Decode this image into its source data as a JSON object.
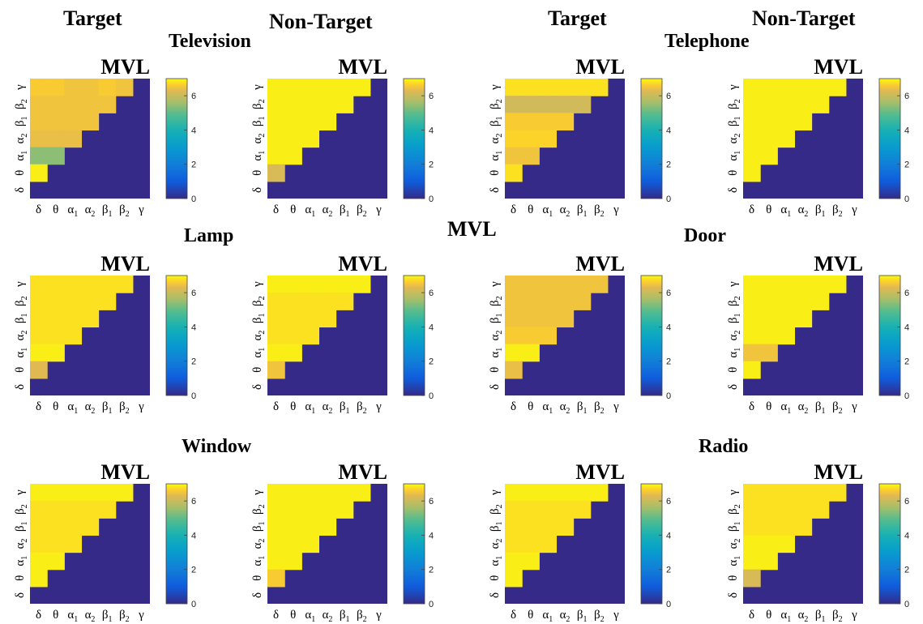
{
  "headers": [
    "Target",
    "Non-Target",
    "Target",
    "Non-Target"
  ],
  "center_label": "MVL",
  "colormap": "parula",
  "colors": {
    "upper_fill": "#352a87",
    "high": "#f9fb0e",
    "mid_orange": "#f6bc38"
  },
  "chart_data": [
    {
      "type": "heatmap",
      "group": "Television",
      "condition": "Target",
      "title": "MVL",
      "x_labels": [
        "δ",
        "θ",
        "α1",
        "α2",
        "β1",
        "β2",
        "γ"
      ],
      "y_labels": [
        "δ",
        "θ",
        "α1",
        "α2",
        "β1",
        "β2",
        "γ"
      ],
      "colorbar": {
        "ticks": [
          "0",
          "2",
          "4",
          "6"
        ],
        "clim": [
          0,
          7
        ]
      },
      "values": [
        [
          6.6,
          6.6,
          6.5,
          6.5,
          6.6,
          6.5
        ],
        [
          6.5,
          6.5,
          6.5,
          6.5,
          6.5
        ],
        [
          6.5,
          6.5,
          6.5,
          6.5
        ],
        [
          6.4,
          6.4,
          6.4
        ],
        [
          5.4,
          5.4
        ],
        [
          6.9
        ]
      ]
    },
    {
      "type": "heatmap",
      "group": "Television",
      "condition": "Non-Target",
      "title": "MVL",
      "x_labels": [
        "δ",
        "θ",
        "α1",
        "α2",
        "β1",
        "β2",
        "γ"
      ],
      "y_labels": [
        "δ",
        "θ",
        "α1",
        "α2",
        "β1",
        "β2",
        "γ"
      ],
      "colorbar": {
        "ticks": [
          "0",
          "2",
          "4",
          "6"
        ],
        "clim": [
          0,
          7
        ]
      },
      "values": [
        [
          6.9,
          6.9,
          6.9,
          6.9,
          6.9,
          6.9
        ],
        [
          6.9,
          6.9,
          6.9,
          6.9,
          6.9
        ],
        [
          6.9,
          6.9,
          6.9,
          6.9
        ],
        [
          6.9,
          6.9,
          6.9
        ],
        [
          6.9,
          6.9
        ],
        [
          6.2
        ]
      ]
    },
    {
      "type": "heatmap",
      "group": "Telephone",
      "condition": "Target",
      "title": "MVL",
      "x_labels": [
        "δ",
        "θ",
        "α1",
        "α2",
        "β1",
        "β2",
        "γ"
      ],
      "y_labels": [
        "δ",
        "θ",
        "α1",
        "α2",
        "β1",
        "β2",
        "γ"
      ],
      "colorbar": {
        "ticks": [
          "0",
          "2",
          "4",
          "6"
        ],
        "clim": [
          0,
          7
        ]
      },
      "values": [
        [
          6.8,
          6.8,
          6.8,
          6.8,
          6.8,
          6.8
        ],
        [
          6.1,
          6.1,
          6.1,
          6.1,
          6.1
        ],
        [
          6.6,
          6.6,
          6.6,
          6.6
        ],
        [
          6.7,
          6.7,
          6.7
        ],
        [
          6.5,
          6.5
        ],
        [
          6.8
        ]
      ]
    },
    {
      "type": "heatmap",
      "group": "Telephone",
      "condition": "Non-Target",
      "title": "MVL",
      "x_labels": [
        "δ",
        "θ",
        "α1",
        "α2",
        "β1",
        "β2",
        "γ"
      ],
      "y_labels": [
        "δ",
        "θ",
        "α1",
        "α2",
        "β1",
        "β2",
        "γ"
      ],
      "colorbar": {
        "ticks": [
          "0",
          "2",
          "4",
          "6"
        ],
        "clim": [
          0,
          7
        ]
      },
      "values": [
        [
          6.9,
          6.9,
          6.9,
          6.9,
          6.9,
          6.9
        ],
        [
          6.9,
          6.9,
          6.9,
          6.9,
          6.9
        ],
        [
          6.9,
          6.9,
          6.9,
          6.9
        ],
        [
          6.9,
          6.9,
          6.9
        ],
        [
          6.9,
          6.9
        ],
        [
          6.9
        ]
      ]
    },
    {
      "type": "heatmap",
      "group": "Lamp",
      "condition": "Target",
      "title": "MVL",
      "x_labels": [
        "δ",
        "θ",
        "α1",
        "α2",
        "β1",
        "β2",
        "γ"
      ],
      "y_labels": [
        "δ",
        "θ",
        "α1",
        "α2",
        "β1",
        "β2",
        "γ"
      ],
      "colorbar": {
        "ticks": [
          "0",
          "2",
          "4",
          "6"
        ],
        "clim": [
          0,
          7
        ]
      },
      "values": [
        [
          6.8,
          6.8,
          6.8,
          6.8,
          6.8,
          6.8
        ],
        [
          6.8,
          6.8,
          6.8,
          6.8,
          6.8
        ],
        [
          6.8,
          6.8,
          6.8,
          6.8
        ],
        [
          6.8,
          6.8,
          6.8
        ],
        [
          6.9,
          6.9
        ],
        [
          6.3
        ]
      ]
    },
    {
      "type": "heatmap",
      "group": "Lamp",
      "condition": "Non-Target",
      "title": "MVL",
      "x_labels": [
        "δ",
        "θ",
        "α1",
        "α2",
        "β1",
        "β2",
        "γ"
      ],
      "y_labels": [
        "δ",
        "θ",
        "α1",
        "α2",
        "β1",
        "β2",
        "γ"
      ],
      "colorbar": {
        "ticks": [
          "0",
          "2",
          "4",
          "6"
        ],
        "clim": [
          0,
          7
        ]
      },
      "values": [
        [
          6.9,
          6.9,
          6.9,
          6.9,
          6.9,
          6.9
        ],
        [
          6.8,
          6.8,
          6.8,
          6.8,
          6.8
        ],
        [
          6.8,
          6.8,
          6.8,
          6.8
        ],
        [
          6.8,
          6.8,
          6.8
        ],
        [
          6.9,
          6.9
        ],
        [
          6.5
        ]
      ]
    },
    {
      "type": "heatmap",
      "group": "Door",
      "condition": "Target",
      "title": "MVL",
      "x_labels": [
        "δ",
        "θ",
        "α1",
        "α2",
        "β1",
        "β2",
        "γ"
      ],
      "y_labels": [
        "δ",
        "θ",
        "α1",
        "α2",
        "β1",
        "β2",
        "γ"
      ],
      "colorbar": {
        "ticks": [
          "0",
          "2",
          "4",
          "6"
        ],
        "clim": [
          0,
          7
        ]
      },
      "values": [
        [
          6.5,
          6.5,
          6.5,
          6.5,
          6.5,
          6.5
        ],
        [
          6.5,
          6.5,
          6.5,
          6.5,
          6.5
        ],
        [
          6.5,
          6.5,
          6.5,
          6.5
        ],
        [
          6.6,
          6.6,
          6.6
        ],
        [
          6.9,
          6.9
        ],
        [
          6.4
        ]
      ]
    },
    {
      "type": "heatmap",
      "group": "Door",
      "condition": "Non-Target",
      "title": "MVL",
      "x_labels": [
        "δ",
        "θ",
        "α1",
        "α2",
        "β1",
        "β2",
        "γ"
      ],
      "y_labels": [
        "δ",
        "θ",
        "α1",
        "α2",
        "β1",
        "β2",
        "γ"
      ],
      "colorbar": {
        "ticks": [
          "0",
          "2",
          "4",
          "6"
        ],
        "clim": [
          0,
          7
        ]
      },
      "values": [
        [
          6.9,
          6.9,
          6.9,
          6.9,
          6.9,
          6.9
        ],
        [
          6.9,
          6.9,
          6.9,
          6.9,
          6.9
        ],
        [
          6.9,
          6.9,
          6.9,
          6.9
        ],
        [
          6.9,
          6.9,
          6.9
        ],
        [
          6.5,
          6.5
        ],
        [
          6.9
        ]
      ]
    },
    {
      "type": "heatmap",
      "group": "Window",
      "condition": "Target",
      "title": "MVL",
      "x_labels": [
        "δ",
        "θ",
        "α1",
        "α2",
        "β1",
        "β2",
        "γ"
      ],
      "y_labels": [
        "δ",
        "θ",
        "α1",
        "α2",
        "β1",
        "β2",
        "γ"
      ],
      "colorbar": {
        "ticks": [
          "0",
          "2",
          "4",
          "6"
        ],
        "clim": [
          0,
          7
        ]
      },
      "values": [
        [
          6.9,
          6.9,
          6.9,
          6.9,
          6.9,
          6.9
        ],
        [
          6.8,
          6.8,
          6.8,
          6.8,
          6.8
        ],
        [
          6.8,
          6.8,
          6.8,
          6.8
        ],
        [
          6.8,
          6.8,
          6.8
        ],
        [
          6.9,
          6.9
        ],
        [
          6.9
        ]
      ]
    },
    {
      "type": "heatmap",
      "group": "Window",
      "condition": "Non-Target",
      "title": "MVL",
      "x_labels": [
        "δ",
        "θ",
        "α1",
        "α2",
        "β1",
        "β2",
        "γ"
      ],
      "y_labels": [
        "δ",
        "θ",
        "α1",
        "α2",
        "β1",
        "β2",
        "γ"
      ],
      "colorbar": {
        "ticks": [
          "0",
          "2",
          "4",
          "6"
        ],
        "clim": [
          0,
          7
        ]
      },
      "values": [
        [
          6.9,
          6.9,
          6.9,
          6.9,
          6.9,
          6.9
        ],
        [
          6.9,
          6.9,
          6.9,
          6.9,
          6.9
        ],
        [
          6.9,
          6.9,
          6.9,
          6.9
        ],
        [
          6.9,
          6.9,
          6.9
        ],
        [
          6.9,
          6.9
        ],
        [
          6.6
        ]
      ]
    },
    {
      "type": "heatmap",
      "group": "Radio",
      "condition": "Target",
      "title": "MVL",
      "x_labels": [
        "δ",
        "θ",
        "α1",
        "α2",
        "β1",
        "β2",
        "γ"
      ],
      "y_labels": [
        "δ",
        "θ",
        "α1",
        "α2",
        "β1",
        "β2",
        "γ"
      ],
      "colorbar": {
        "ticks": [
          "0",
          "2",
          "4",
          "6"
        ],
        "clim": [
          0,
          7
        ]
      },
      "values": [
        [
          6.9,
          6.9,
          6.9,
          6.9,
          6.9,
          6.9
        ],
        [
          6.8,
          6.8,
          6.8,
          6.8,
          6.8
        ],
        [
          6.8,
          6.8,
          6.8,
          6.8
        ],
        [
          6.8,
          6.8,
          6.8
        ],
        [
          6.9,
          6.9
        ],
        [
          6.9
        ]
      ]
    },
    {
      "type": "heatmap",
      "group": "Radio",
      "condition": "Non-Target",
      "title": "MVL",
      "x_labels": [
        "δ",
        "θ",
        "α1",
        "α2",
        "β1",
        "β2",
        "γ"
      ],
      "y_labels": [
        "δ",
        "θ",
        "α1",
        "α2",
        "β1",
        "β2",
        "γ"
      ],
      "colorbar": {
        "ticks": [
          "0",
          "2",
          "4",
          "6"
        ],
        "clim": [
          0,
          7
        ]
      },
      "values": [
        [
          6.8,
          6.8,
          6.8,
          6.8,
          6.8,
          6.8
        ],
        [
          6.8,
          6.8,
          6.8,
          6.8,
          6.8
        ],
        [
          6.8,
          6.8,
          6.8,
          6.8
        ],
        [
          6.9,
          6.9,
          6.9
        ],
        [
          6.9,
          6.9
        ],
        [
          6.2
        ]
      ]
    }
  ]
}
